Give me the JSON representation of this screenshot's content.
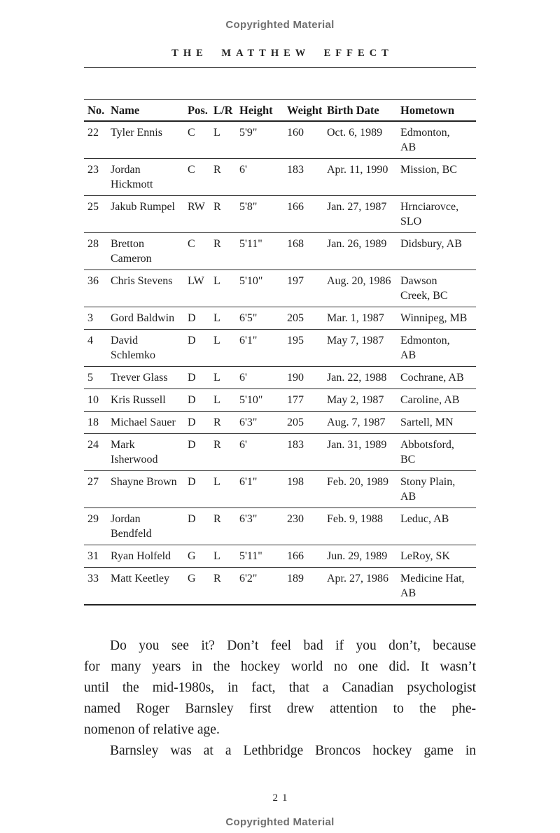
{
  "page": {
    "copyright_notice_top": "Copyrighted Material",
    "chapter_title": "THE MATTHEW EFFECT",
    "page_number": "21",
    "copyright_notice_bottom": "Copyrighted Material"
  },
  "roster_table": {
    "headers": [
      "No.",
      "Name",
      "Pos.",
      "L/R",
      "Height",
      "Weight",
      "Birth Date",
      "Hometown"
    ],
    "rows": [
      [
        "22",
        "Tyler Ennis",
        "C",
        "L",
        "5'9\"",
        "160",
        "Oct. 6, 1989",
        "Edmonton,\nAB"
      ],
      [
        "23",
        "Jordan\nHickmott",
        "C",
        "R",
        "6'",
        "183",
        "Apr. 11, 1990",
        "Mission, BC"
      ],
      [
        "25",
        "Jakub Rumpel",
        "RW",
        "R",
        "5'8\"",
        "166",
        "Jan. 27, 1987",
        "Hrnciarovce,\nSLO"
      ],
      [
        "28",
        "Bretton\nCameron",
        "C",
        "R",
        "5'11\"",
        "168",
        "Jan. 26, 1989",
        "Didsbury, AB"
      ],
      [
        "36",
        "Chris Stevens",
        "LW",
        "L",
        "5'10\"",
        "197",
        "Aug. 20, 1986",
        "Dawson\nCreek, BC"
      ],
      [
        "3",
        "Gord Baldwin",
        "D",
        "L",
        "6'5\"",
        "205",
        "Mar. 1, 1987",
        "Winnipeg, MB"
      ],
      [
        "4",
        "David\nSchlemko",
        "D",
        "L",
        "6'1\"",
        "195",
        "May 7, 1987",
        "Edmonton,\nAB"
      ],
      [
        "5",
        "Trever Glass",
        "D",
        "L",
        "6'",
        "190",
        "Jan. 22, 1988",
        "Cochrane, AB"
      ],
      [
        "10",
        "Kris Russell",
        "D",
        "L",
        "5'10\"",
        "177",
        "May 2, 1987",
        "Caroline, AB"
      ],
      [
        "18",
        "Michael Sauer",
        "D",
        "R",
        "6'3\"",
        "205",
        "Aug. 7, 1987",
        "Sartell, MN"
      ],
      [
        "24",
        "Mark\nIsherwood",
        "D",
        "R",
        "6'",
        "183",
        "Jan. 31, 1989",
        "Abbotsford,\nBC"
      ],
      [
        "27",
        "Shayne Brown",
        "D",
        "L",
        "6'1\"",
        "198",
        "Feb. 20, 1989",
        "Stony Plain,\nAB"
      ],
      [
        "29",
        "Jordan\nBendfeld",
        "D",
        "R",
        "6'3\"",
        "230",
        "Feb. 9, 1988",
        "Leduc, AB"
      ],
      [
        "31",
        "Ryan Holfeld",
        "G",
        "L",
        "5'11\"",
        "166",
        "Jun. 29, 1989",
        "LeRoy, SK"
      ],
      [
        "33",
        "Matt Keetley",
        "G",
        "R",
        "6'2\"",
        "189",
        "Apr. 27, 1986",
        "Medicine Hat,\nAB"
      ]
    ]
  },
  "body_text": {
    "paragraphs": [
      {
        "indent": true,
        "justify_last_line": false,
        "lines": [
          "Do you see it? Don’t feel bad if you don’t, because",
          "for many years in the hockey world no one did. It wasn’t",
          "until the mid-1980s, in fact, that a Canadian psychologist",
          "named Roger Barnsley first drew attention to the phe-",
          "nomenon of relative age."
        ]
      },
      {
        "indent": true,
        "justify_last_line": true,
        "lines": [
          "Barnsley was at a Lethbridge Broncos hockey game in"
        ]
      }
    ]
  },
  "colors": {
    "text": "#1c1c1c",
    "muted_gray": "#6f6f6f",
    "rule": "#2a2a2a"
  }
}
